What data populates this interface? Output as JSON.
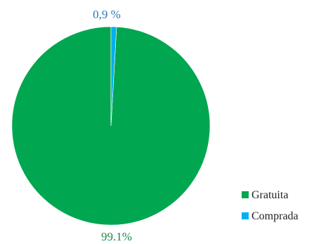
{
  "chart_data": {
    "type": "pie",
    "title": "",
    "slices": [
      {
        "label": "Gratuita",
        "value": 99.1,
        "display": "99.1%",
        "color": "#00a650"
      },
      {
        "label": "Comprada",
        "value": 0.9,
        "display": "0,9 %",
        "color": "#00b0f0"
      }
    ],
    "legend": {
      "position": "bottom-right"
    }
  }
}
